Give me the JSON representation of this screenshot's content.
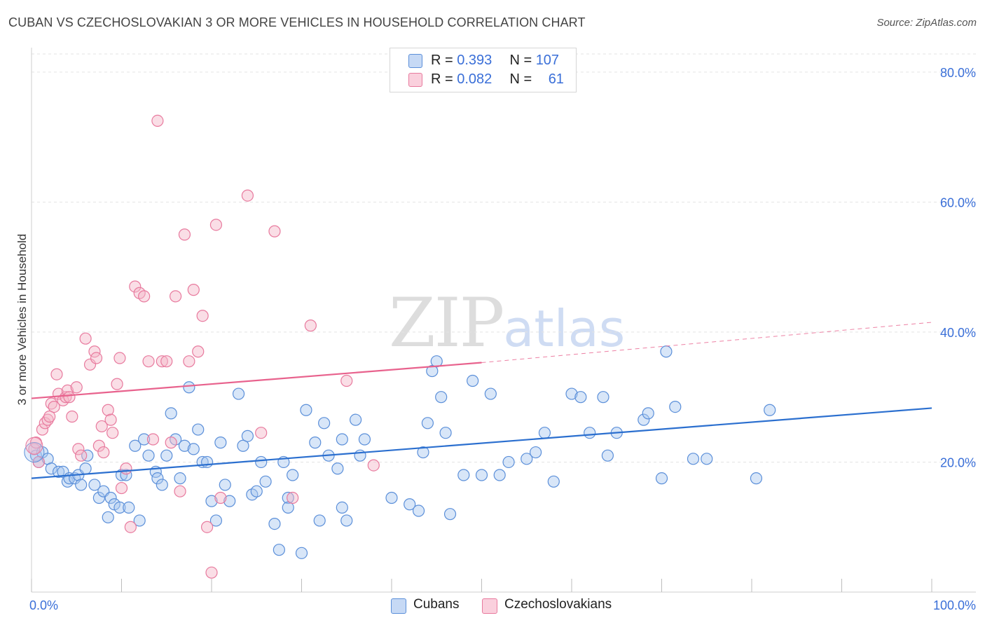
{
  "title": "CUBAN VS CZECHOSLOVAKIAN 3 OR MORE VEHICLES IN HOUSEHOLD CORRELATION CHART",
  "source": "Source: ZipAtlas.com",
  "watermark": {
    "zip": "ZIP",
    "atlas": "atlas"
  },
  "legend_top": {
    "rows": [
      {
        "r_label": "R = ",
        "r_value": "0.393",
        "n_label": "N = ",
        "n_value": "107",
        "color": "#a9c7f0"
      },
      {
        "r_label": "R = ",
        "r_value": "0.082",
        "n_label": "N = ",
        "n_value": "61",
        "color": "#f5b5c8"
      }
    ]
  },
  "chart_data": {
    "type": "scatter",
    "title": "CUBAN VS CZECHOSLOVAKIAN 3 OR MORE VEHICLES IN HOUSEHOLD CORRELATION CHART",
    "xlabel": "",
    "ylabel": "3 or more Vehicles in Household",
    "xlim": [
      0,
      100
    ],
    "ylim": [
      0,
      83
    ],
    "x_tick_labels": [
      {
        "value": 0,
        "label": "0.0%"
      },
      {
        "value": 100,
        "label": "100.0%"
      }
    ],
    "y_ticks": [
      {
        "value": 20,
        "label": "20.0%"
      },
      {
        "value": 40,
        "label": "40.0%"
      },
      {
        "value": 60,
        "label": "60.0%"
      },
      {
        "value": 80,
        "label": "80.0%"
      }
    ],
    "x_minor_ticks": [
      0,
      10,
      20,
      30,
      40,
      50,
      60,
      70,
      80,
      90,
      100
    ],
    "grid": true,
    "legend_position": "bottom",
    "series": [
      {
        "name": "Cubans",
        "color": "#5b8fd9",
        "fill": "#a9c7f0",
        "trend": {
          "x": [
            0,
            100
          ],
          "y": [
            17.5,
            28.3
          ],
          "color": "#2b6fcf"
        },
        "points": [
          [
            0.5,
            21
          ],
          [
            0.8,
            20
          ],
          [
            1.2,
            21.5
          ],
          [
            1.8,
            20.5
          ],
          [
            2.2,
            19
          ],
          [
            3,
            18.5
          ],
          [
            3.5,
            18.5
          ],
          [
            4,
            17
          ],
          [
            4.2,
            17.5
          ],
          [
            4.8,
            17.5
          ],
          [
            5.2,
            18
          ],
          [
            5.5,
            16.5
          ],
          [
            6,
            19
          ],
          [
            6.2,
            21
          ],
          [
            7,
            16.5
          ],
          [
            7.5,
            14.5
          ],
          [
            8,
            15.5
          ],
          [
            8.5,
            11.5
          ],
          [
            8.8,
            14.5
          ],
          [
            9.2,
            13.5
          ],
          [
            9.8,
            13
          ],
          [
            10,
            18
          ],
          [
            10.5,
            18
          ],
          [
            10.8,
            13
          ],
          [
            11.5,
            22.5
          ],
          [
            12,
            11
          ],
          [
            12.5,
            23.5
          ],
          [
            13,
            21
          ],
          [
            13.8,
            18.5
          ],
          [
            14,
            17.5
          ],
          [
            14.5,
            16.5
          ],
          [
            15,
            21
          ],
          [
            15.5,
            27.5
          ],
          [
            16,
            23.5
          ],
          [
            16.5,
            17.5
          ],
          [
            17,
            22.5
          ],
          [
            17.5,
            31.5
          ],
          [
            18,
            22
          ],
          [
            18.5,
            25
          ],
          [
            19,
            20
          ],
          [
            19.5,
            20
          ],
          [
            20,
            14
          ],
          [
            20.5,
            11
          ],
          [
            21,
            23
          ],
          [
            21.5,
            16.5
          ],
          [
            22,
            14
          ],
          [
            23,
            30.5
          ],
          [
            23.5,
            22.5
          ],
          [
            24,
            24
          ],
          [
            24.5,
            15
          ],
          [
            25,
            15.5
          ],
          [
            25.5,
            20
          ],
          [
            26,
            17
          ],
          [
            27,
            10.5
          ],
          [
            27.5,
            6.5
          ],
          [
            28,
            20
          ],
          [
            28.5,
            14.5
          ],
          [
            28.5,
            13
          ],
          [
            29,
            18
          ],
          [
            30,
            6
          ],
          [
            30.5,
            28
          ],
          [
            31.5,
            23
          ],
          [
            32,
            11
          ],
          [
            32.5,
            26
          ],
          [
            33,
            21
          ],
          [
            34,
            19
          ],
          [
            34.5,
            23.5
          ],
          [
            34.5,
            13
          ],
          [
            35,
            11
          ],
          [
            36,
            26.5
          ],
          [
            36.5,
            21
          ],
          [
            37,
            23.5
          ],
          [
            40,
            14.5
          ],
          [
            42,
            13.5
          ],
          [
            43,
            12.5
          ],
          [
            43.5,
            21.5
          ],
          [
            44,
            26
          ],
          [
            44.5,
            34
          ],
          [
            45,
            35.5
          ],
          [
            45.5,
            30
          ],
          [
            46,
            24.5
          ],
          [
            46.5,
            12
          ],
          [
            48,
            18
          ],
          [
            49,
            32.5
          ],
          [
            50,
            18
          ],
          [
            51,
            30.5
          ],
          [
            52,
            18
          ],
          [
            53,
            20
          ],
          [
            55,
            20.5
          ],
          [
            56,
            21.5
          ],
          [
            57,
            24.5
          ],
          [
            58,
            17
          ],
          [
            60,
            30.5
          ],
          [
            61,
            30
          ],
          [
            62,
            24.5
          ],
          [
            63.5,
            30
          ],
          [
            64,
            21
          ],
          [
            65,
            24.5
          ],
          [
            68,
            26.5
          ],
          [
            68.5,
            27.5
          ],
          [
            70,
            17.5
          ],
          [
            70.5,
            37
          ],
          [
            71.5,
            28.5
          ],
          [
            73.5,
            20.5
          ],
          [
            75,
            20.5
          ],
          [
            80.5,
            17.5
          ],
          [
            82,
            28
          ]
        ]
      },
      {
        "name": "Czechoslovakians",
        "color": "#e87a9e",
        "fill": "#f5b5c8",
        "trend": {
          "x": [
            0,
            50
          ],
          "y": [
            29.8,
            35.3
          ],
          "color": "#e8628d",
          "dashed_extension": {
            "x": [
              50,
              100
            ],
            "y": [
              35.3,
              41.5
            ]
          }
        },
        "points": [
          [
            0.3,
            22
          ],
          [
            0.5,
            23
          ],
          [
            0.8,
            20
          ],
          [
            1.2,
            25
          ],
          [
            1.5,
            26
          ],
          [
            1.8,
            26.5
          ],
          [
            2,
            27
          ],
          [
            2.2,
            29
          ],
          [
            2.5,
            28.5
          ],
          [
            2.8,
            33.5
          ],
          [
            3,
            30.5
          ],
          [
            3.5,
            29.5
          ],
          [
            3.8,
            30
          ],
          [
            4,
            31
          ],
          [
            4.2,
            30
          ],
          [
            4.5,
            27
          ],
          [
            5,
            31.5
          ],
          [
            5.2,
            22
          ],
          [
            5.5,
            21
          ],
          [
            6,
            39
          ],
          [
            6.5,
            35
          ],
          [
            7,
            37
          ],
          [
            7.2,
            36
          ],
          [
            7.5,
            22.5
          ],
          [
            7.8,
            25.5
          ],
          [
            8,
            21.5
          ],
          [
            8.5,
            28
          ],
          [
            8.8,
            26.5
          ],
          [
            9,
            24.5
          ],
          [
            9.5,
            32
          ],
          [
            9.8,
            36
          ],
          [
            10,
            16
          ],
          [
            10.5,
            19
          ],
          [
            11,
            10
          ],
          [
            11.5,
            47
          ],
          [
            12,
            46
          ],
          [
            12.5,
            45.5
          ],
          [
            13,
            35.5
          ],
          [
            13.5,
            23.5
          ],
          [
            14,
            72.5
          ],
          [
            14.5,
            35.5
          ],
          [
            15,
            35.5
          ],
          [
            15.5,
            23
          ],
          [
            16,
            45.5
          ],
          [
            16.5,
            15.5
          ],
          [
            17,
            55
          ],
          [
            17.5,
            35.5
          ],
          [
            18,
            46.5
          ],
          [
            18.5,
            37
          ],
          [
            19,
            42.5
          ],
          [
            19.5,
            10
          ],
          [
            20,
            3
          ],
          [
            20.5,
            56.5
          ],
          [
            21,
            14.5
          ],
          [
            24,
            61
          ],
          [
            25.5,
            24.5
          ],
          [
            27,
            55.5
          ],
          [
            29,
            14.5
          ],
          [
            31,
            41
          ],
          [
            35,
            32.5
          ],
          [
            38,
            19.5
          ]
        ]
      }
    ]
  },
  "bottom_legend": [
    {
      "label": "Cubans",
      "color": "#a9c7f0"
    },
    {
      "label": "Czechoslovakians",
      "color": "#f5b5c8"
    }
  ]
}
